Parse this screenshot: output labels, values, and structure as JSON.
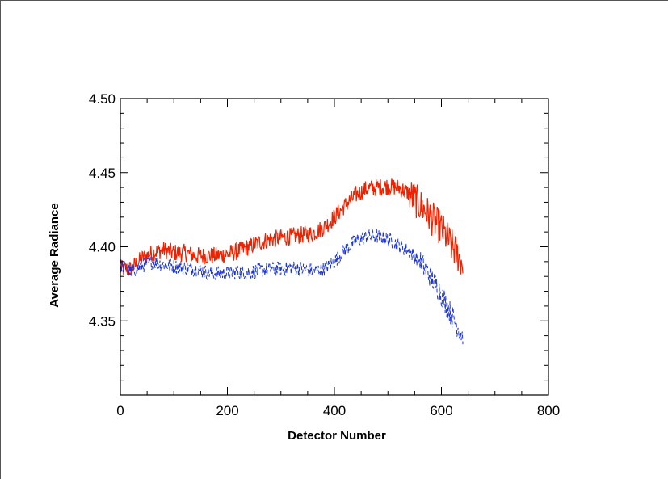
{
  "chart_data": {
    "type": "line",
    "title": "",
    "xlabel": "Detector Number",
    "ylabel": "Average Radiance",
    "xlim": [
      0,
      800
    ],
    "ylim": [
      4.3,
      4.5
    ],
    "x_ticks": [
      "0",
      "200",
      "400",
      "600",
      "800"
    ],
    "y_ticks": [
      "4.35",
      "4.40",
      "4.45",
      "4.50"
    ],
    "grid": false,
    "legend": "none",
    "series": [
      {
        "color": "#ee2200",
        "line_style": "solid",
        "x": [
          0,
          20,
          40,
          60,
          80,
          100,
          120,
          140,
          160,
          180,
          200,
          220,
          240,
          260,
          280,
          300,
          320,
          340,
          360,
          380,
          400,
          420,
          440,
          460,
          480,
          500,
          520,
          540,
          560,
          580,
          600,
          620,
          640
        ],
        "y": [
          4.385,
          4.385,
          4.392,
          4.396,
          4.398,
          4.396,
          4.396,
          4.394,
          4.394,
          4.394,
          4.395,
          4.397,
          4.4,
          4.403,
          4.405,
          4.406,
          4.407,
          4.408,
          4.409,
          4.413,
          4.42,
          4.428,
          4.435,
          4.439,
          4.44,
          4.441,
          4.44,
          4.436,
          4.428,
          4.42,
          4.412,
          4.4,
          4.389
        ]
      },
      {
        "color": "#1a33dd",
        "line_style": "dashed",
        "x": [
          0,
          20,
          40,
          60,
          80,
          100,
          120,
          140,
          160,
          180,
          200,
          220,
          240,
          260,
          280,
          300,
          320,
          340,
          360,
          380,
          400,
          420,
          440,
          460,
          480,
          500,
          520,
          540,
          560,
          580,
          600,
          620,
          640
        ],
        "y": [
          4.388,
          4.383,
          4.387,
          4.39,
          4.388,
          4.387,
          4.386,
          4.385,
          4.383,
          4.382,
          4.382,
          4.383,
          4.383,
          4.384,
          4.385,
          4.385,
          4.386,
          4.385,
          4.384,
          4.385,
          4.39,
          4.398,
          4.404,
          4.407,
          4.407,
          4.405,
          4.401,
          4.397,
          4.39,
          4.38,
          4.368,
          4.353,
          4.34
        ]
      }
    ]
  }
}
